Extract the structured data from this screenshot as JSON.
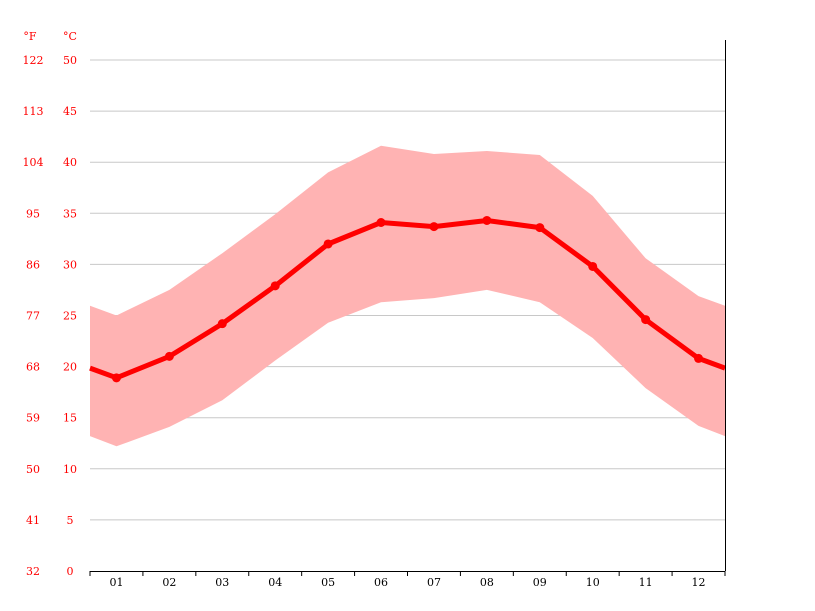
{
  "chart_data": {
    "type": "line",
    "title": "",
    "xlabel": "",
    "ylabel_left": "°F",
    "ylabel_right": "°C",
    "categories": [
      "01",
      "02",
      "03",
      "04",
      "05",
      "06",
      "07",
      "08",
      "09",
      "10",
      "11",
      "12"
    ],
    "ylim": [
      0,
      50
    ],
    "yticks_c": [
      "0",
      "5",
      "10",
      "15",
      "20",
      "25",
      "30",
      "35",
      "40",
      "45",
      "50"
    ],
    "yticks_f": [
      "32",
      "41",
      "50",
      "59",
      "68",
      "77",
      "86",
      "95",
      "104",
      "113",
      "122"
    ],
    "grid": true,
    "series": [
      {
        "role": "mean",
        "values": [
          18.9,
          21.0,
          24.2,
          27.9,
          32.0,
          34.1,
          33.7,
          34.3,
          33.6,
          29.8,
          24.6,
          20.8
        ],
        "color": "#ff0000"
      },
      {
        "role": "max",
        "values": [
          25.0,
          27.5,
          31.1,
          34.9,
          39.0,
          41.6,
          40.8,
          41.1,
          40.7,
          36.7,
          30.6,
          26.9
        ],
        "color": "#ffb3b3"
      },
      {
        "role": "min",
        "values": [
          12.2,
          14.1,
          16.7,
          20.6,
          24.3,
          26.3,
          26.7,
          27.5,
          26.3,
          22.8,
          17.9,
          14.2
        ],
        "color": "#ffb3b3"
      }
    ]
  }
}
